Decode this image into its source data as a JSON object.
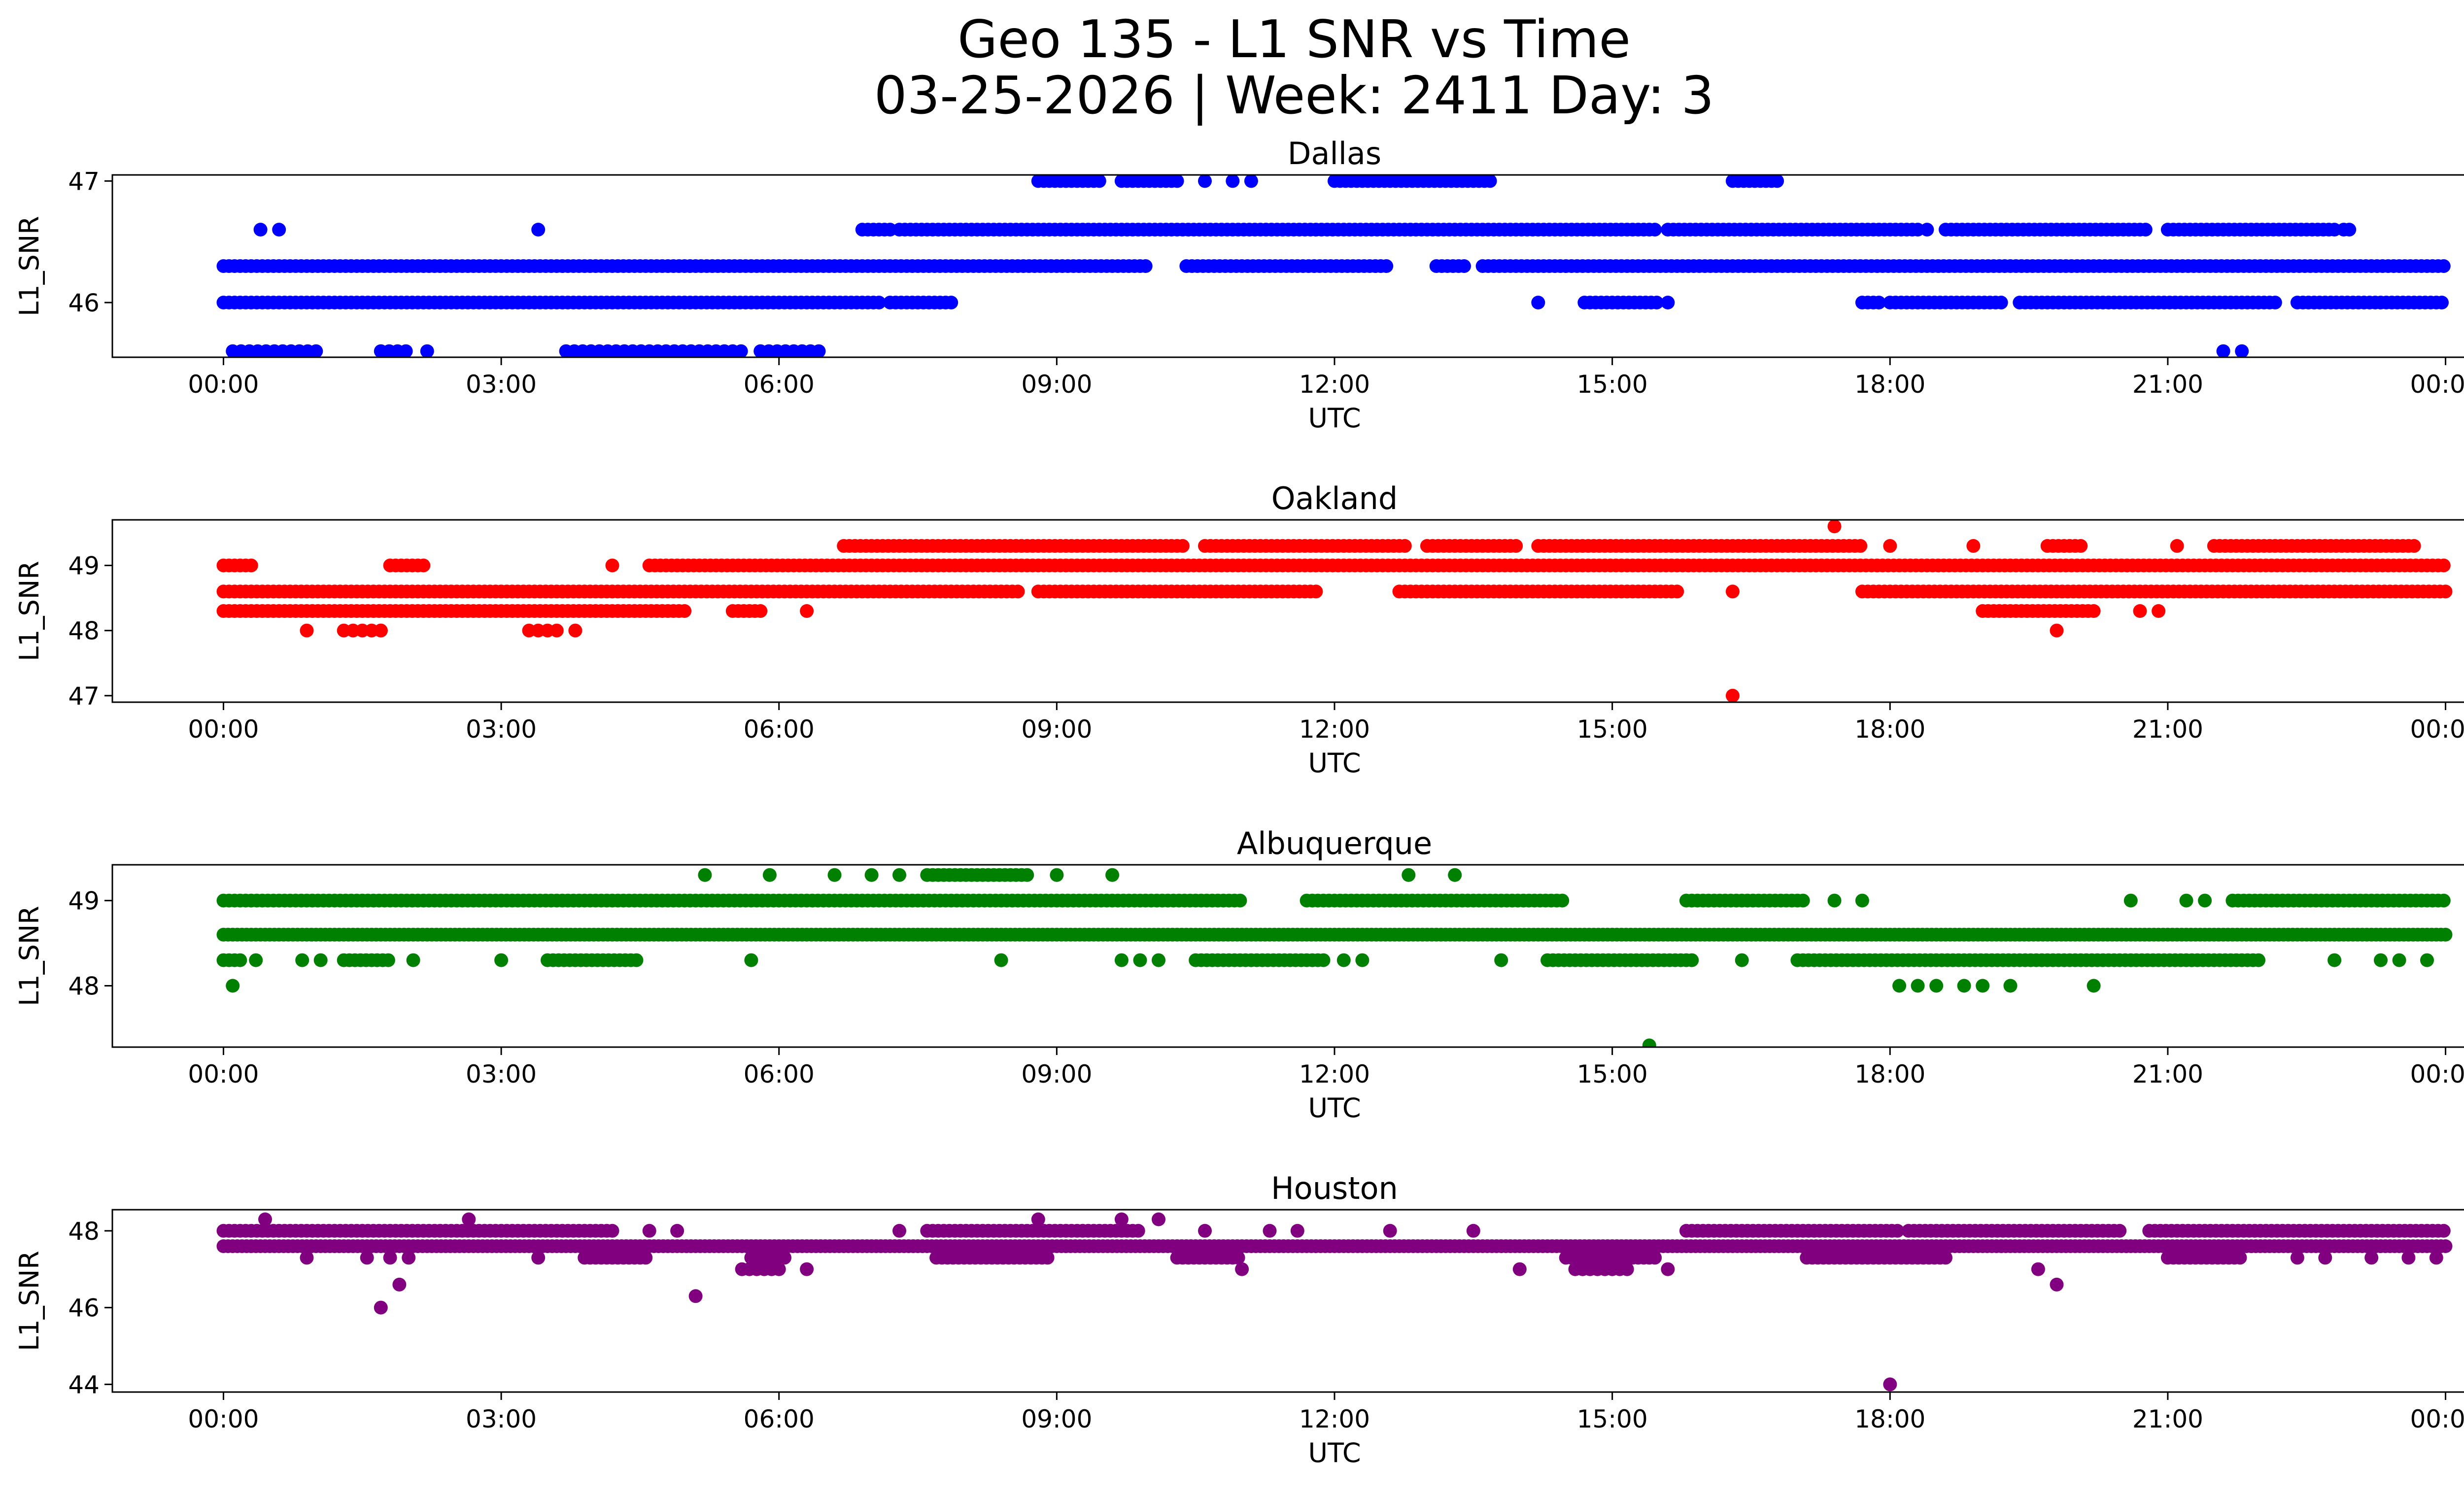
{
  "chart_data": {
    "title_line1": "Geo 135 - L1 SNR vs Time",
    "title_line2": "03-25-2026 | Week: 2411 Day: 3",
    "xlabel": "UTC",
    "ylabel": "L1_SNR",
    "x_tick_labels": [
      "00:00",
      "03:00",
      "06:00",
      "09:00",
      "12:00",
      "15:00",
      "18:00",
      "21:00",
      "00:00"
    ],
    "x_tick_hours": [
      0,
      3,
      6,
      9,
      12,
      15,
      18,
      21,
      24
    ],
    "xlim_hours": [
      -1.2,
      25.2
    ],
    "panels": [
      {
        "type": "scatter",
        "title": "Dallas",
        "color": "#0000ff",
        "ylim": [
          45.55,
          47.05
        ],
        "y_ticks": [
          46,
          47
        ],
        "series": [
          {
            "y": 46.3,
            "segments": [
              [
                0.0,
                10.0
              ],
              [
                10.4,
                12.6
              ],
              [
                13.1,
                13.4
              ],
              [
                13.6,
                24.0
              ]
            ],
            "spacing": 0.06
          },
          {
            "y": 46.0,
            "segments": [
              [
                0.0,
                7.1
              ],
              [
                7.2,
                7.9
              ],
              [
                14.7,
                15.5
              ],
              [
                17.7,
                17.9
              ],
              [
                18.0,
                19.2
              ],
              [
                19.4,
                22.2
              ],
              [
                22.4,
                24.0
              ]
            ],
            "spacing": 0.06
          },
          {
            "y": 46.6,
            "segments": [
              [
                6.9,
                7.2
              ],
              [
                7.3,
                15.5
              ],
              [
                15.6,
                18.3
              ],
              [
                18.6,
                20.8
              ],
              [
                21.0,
                22.8
              ],
              [
                22.9,
                23.0
              ]
            ],
            "spacing": 0.06
          },
          {
            "y": 47.0,
            "segments": [
              [
                8.8,
                9.5
              ],
              [
                9.7,
                10.3
              ],
              [
                12.0,
                13.7
              ],
              [
                16.3,
                16.8
              ]
            ],
            "spacing": 0.06
          },
          {
            "y": 45.6,
            "segments": [
              [
                0.1,
                1.0
              ],
              [
                1.7,
                2.0
              ],
              [
                3.7,
                5.6
              ],
              [
                5.8,
                6.5
              ]
            ],
            "spacing": 0.09
          }
        ],
        "points": [
          [
            0.4,
            46.6
          ],
          [
            0.6,
            46.6
          ],
          [
            3.4,
            46.6
          ],
          [
            10.6,
            47.0
          ],
          [
            10.9,
            47.0
          ],
          [
            11.1,
            47.0
          ],
          [
            14.2,
            46.0
          ],
          [
            15.6,
            46.0
          ],
          [
            18.4,
            46.6
          ],
          [
            21.6,
            45.6
          ],
          [
            21.8,
            45.6
          ],
          [
            2.2,
            45.6
          ]
        ]
      },
      {
        "type": "scatter",
        "title": "Oakland",
        "color": "#ff0000",
        "ylim": [
          46.9,
          49.7
        ],
        "y_ticks": [
          47,
          48,
          49
        ],
        "series": [
          {
            "y": 48.6,
            "segments": [
              [
                0.0,
                8.6
              ],
              [
                8.8,
                11.8
              ],
              [
                12.7,
                15.7
              ],
              [
                17.7,
                24.0
              ]
            ],
            "spacing": 0.06
          },
          {
            "y": 48.3,
            "segments": [
              [
                0.0,
                5.0
              ],
              [
                5.5,
                5.8
              ],
              [
                19.0,
                20.2
              ]
            ],
            "spacing": 0.06
          },
          {
            "y": 49.0,
            "segments": [
              [
                0.0,
                0.3
              ],
              [
                1.8,
                2.2
              ],
              [
                4.6,
                24.0
              ]
            ],
            "spacing": 0.06
          },
          {
            "y": 49.3,
            "segments": [
              [
                6.7,
                10.4
              ],
              [
                10.6,
                12.8
              ],
              [
                13.0,
                14.0
              ],
              [
                14.2,
                17.7
              ],
              [
                19.7,
                20.1
              ],
              [
                21.5,
                23.7
              ]
            ],
            "spacing": 0.06
          },
          {
            "y": 48.0,
            "segments": [
              [
                1.3,
                1.7
              ],
              [
                3.3,
                3.6
              ]
            ],
            "spacing": 0.1
          }
        ],
        "points": [
          [
            0.9,
            48.0
          ],
          [
            1.7,
            48.0
          ],
          [
            3.8,
            48.0
          ],
          [
            4.2,
            49.0
          ],
          [
            6.3,
            48.3
          ],
          [
            16.3,
            48.6
          ],
          [
            17.4,
            49.6
          ],
          [
            18.0,
            49.3
          ],
          [
            16.3,
            47.0
          ],
          [
            19.8,
            48.0
          ],
          [
            20.7,
            48.3
          ],
          [
            20.9,
            48.3
          ],
          [
            21.1,
            49.3
          ],
          [
            18.9,
            49.3
          ]
        ]
      },
      {
        "type": "scatter",
        "title": "Albuquerque",
        "color": "#008000",
        "ylim": [
          47.28,
          49.42
        ],
        "y_ticks": [
          48,
          49
        ],
        "series": [
          {
            "y": 48.6,
            "segments": [
              [
                0.0,
                24.0
              ]
            ],
            "spacing": 0.05
          },
          {
            "y": 49.0,
            "segments": [
              [
                0.0,
                11.0
              ],
              [
                11.7,
                14.5
              ],
              [
                15.8,
                17.1
              ],
              [
                21.7,
                24.0
              ]
            ],
            "spacing": 0.06
          },
          {
            "y": 48.3,
            "segments": [
              [
                0.0,
                0.2
              ],
              [
                1.3,
                1.8
              ],
              [
                3.5,
                4.5
              ],
              [
                10.5,
                11.9
              ],
              [
                14.3,
                15.9
              ],
              [
                17.0,
                22.0
              ]
            ],
            "spacing": 0.06
          },
          {
            "y": 49.3,
            "segments": [
              [
                7.6,
                8.7
              ]
            ],
            "spacing": 0.06
          }
        ],
        "points": [
          [
            0.1,
            48.0
          ],
          [
            0.35,
            48.3
          ],
          [
            0.85,
            48.3
          ],
          [
            1.05,
            48.3
          ],
          [
            2.05,
            48.3
          ],
          [
            3.0,
            48.3
          ],
          [
            5.7,
            48.3
          ],
          [
            5.2,
            49.3
          ],
          [
            5.9,
            49.3
          ],
          [
            6.6,
            49.3
          ],
          [
            7.0,
            49.3
          ],
          [
            7.3,
            49.3
          ],
          [
            9.0,
            49.3
          ],
          [
            9.6,
            49.3
          ],
          [
            9.7,
            48.3
          ],
          [
            9.9,
            48.3
          ],
          [
            10.1,
            48.3
          ],
          [
            8.4,
            48.3
          ],
          [
            12.1,
            48.3
          ],
          [
            12.3,
            48.3
          ],
          [
            12.8,
            49.3
          ],
          [
            13.3,
            49.3
          ],
          [
            13.8,
            48.3
          ],
          [
            16.4,
            48.3
          ],
          [
            17.4,
            49.0
          ],
          [
            17.7,
            49.0
          ],
          [
            18.1,
            48.0
          ],
          [
            18.3,
            48.0
          ],
          [
            18.5,
            48.0
          ],
          [
            18.8,
            48.0
          ],
          [
            19.0,
            48.0
          ],
          [
            19.3,
            48.0
          ],
          [
            20.2,
            48.0
          ],
          [
            20.6,
            49.0
          ],
          [
            21.2,
            49.0
          ],
          [
            21.4,
            49.0
          ],
          [
            22.8,
            48.3
          ],
          [
            23.3,
            48.3
          ],
          [
            23.5,
            48.3
          ],
          [
            23.8,
            48.3
          ],
          [
            15.4,
            47.3
          ]
        ]
      },
      {
        "type": "scatter",
        "title": "Houston",
        "color": "#800080",
        "ylim": [
          43.8,
          48.55
        ],
        "y_ticks": [
          44,
          46,
          48
        ],
        "series": [
          {
            "y": 47.6,
            "segments": [
              [
                0.0,
                24.0
              ]
            ],
            "spacing": 0.05
          },
          {
            "y": 48.0,
            "segments": [
              [
                0.0,
                4.2
              ],
              [
                7.6,
                9.9
              ],
              [
                15.8,
                18.1
              ],
              [
                18.2,
                20.5
              ],
              [
                20.8,
                24.0
              ]
            ],
            "spacing": 0.06
          },
          {
            "y": 47.3,
            "segments": [
              [
                3.9,
                4.6
              ],
              [
                5.7,
                6.1
              ],
              [
                7.7,
                8.9
              ],
              [
                10.3,
                11.0
              ],
              [
                14.5,
                15.5
              ],
              [
                17.1,
                18.6
              ],
              [
                21.0,
                21.8
              ]
            ],
            "spacing": 0.06
          },
          {
            "y": 47.0,
            "segments": [
              [
                5.6,
                6.0
              ],
              [
                14.6,
                15.2
              ]
            ],
            "spacing": 0.08
          }
        ],
        "points": [
          [
            0.45,
            48.3
          ],
          [
            2.65,
            48.3
          ],
          [
            8.8,
            48.3
          ],
          [
            9.7,
            48.3
          ],
          [
            10.1,
            48.3
          ],
          [
            1.7,
            46.0
          ],
          [
            1.9,
            46.6
          ],
          [
            5.1,
            46.3
          ],
          [
            19.8,
            46.6
          ],
          [
            18.0,
            44.0
          ],
          [
            0.9,
            47.3
          ],
          [
            1.55,
            47.3
          ],
          [
            1.8,
            47.3
          ],
          [
            2.0,
            47.3
          ],
          [
            3.4,
            47.3
          ],
          [
            4.6,
            48.0
          ],
          [
            4.9,
            48.0
          ],
          [
            6.3,
            47.0
          ],
          [
            7.3,
            48.0
          ],
          [
            10.6,
            48.0
          ],
          [
            11.0,
            47.0
          ],
          [
            11.3,
            48.0
          ],
          [
            11.6,
            48.0
          ],
          [
            12.6,
            48.0
          ],
          [
            13.5,
            48.0
          ],
          [
            14.0,
            47.0
          ],
          [
            15.6,
            47.0
          ],
          [
            19.6,
            47.0
          ],
          [
            22.4,
            47.3
          ],
          [
            22.7,
            47.3
          ],
          [
            23.2,
            47.3
          ],
          [
            23.6,
            47.3
          ],
          [
            23.9,
            47.3
          ]
        ]
      }
    ]
  }
}
